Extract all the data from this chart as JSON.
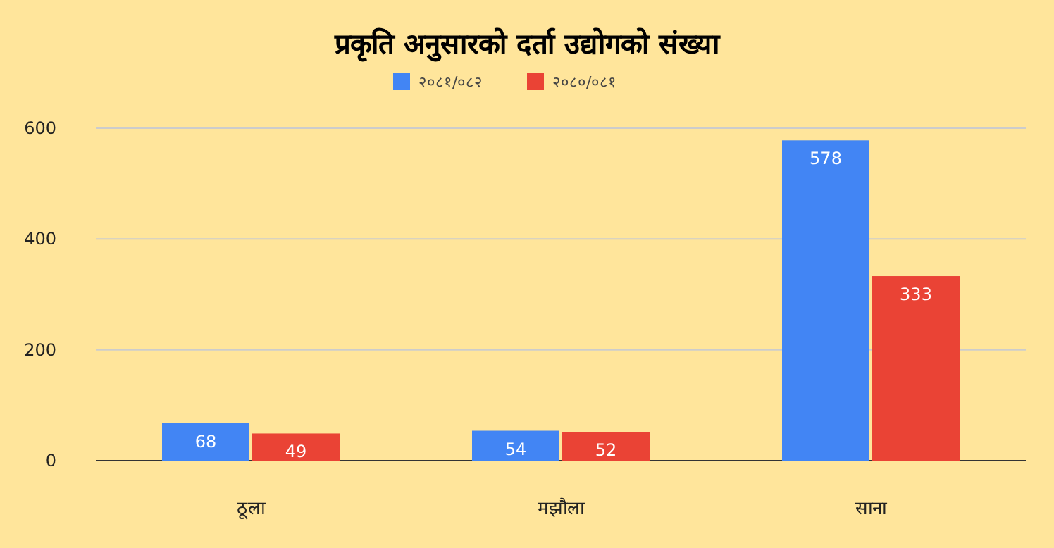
{
  "chart_data": {
    "type": "bar",
    "title": "प्रकृति अनुसारको दर्ता उद्योगको संख्या",
    "categories": [
      "ठूला",
      "मझौला",
      "साना"
    ],
    "series": [
      {
        "name": "२०८१/०८२",
        "color": "#4285f4",
        "values": [
          68,
          54,
          578
        ]
      },
      {
        "name": "२०८०/०८१",
        "color": "#ea4335",
        "values": [
          49,
          52,
          333
        ]
      }
    ],
    "ylim": [
      0,
      600
    ],
    "yticks": [
      0,
      200,
      400,
      600
    ],
    "grid": "y",
    "legend": "top",
    "data_labels": true
  }
}
